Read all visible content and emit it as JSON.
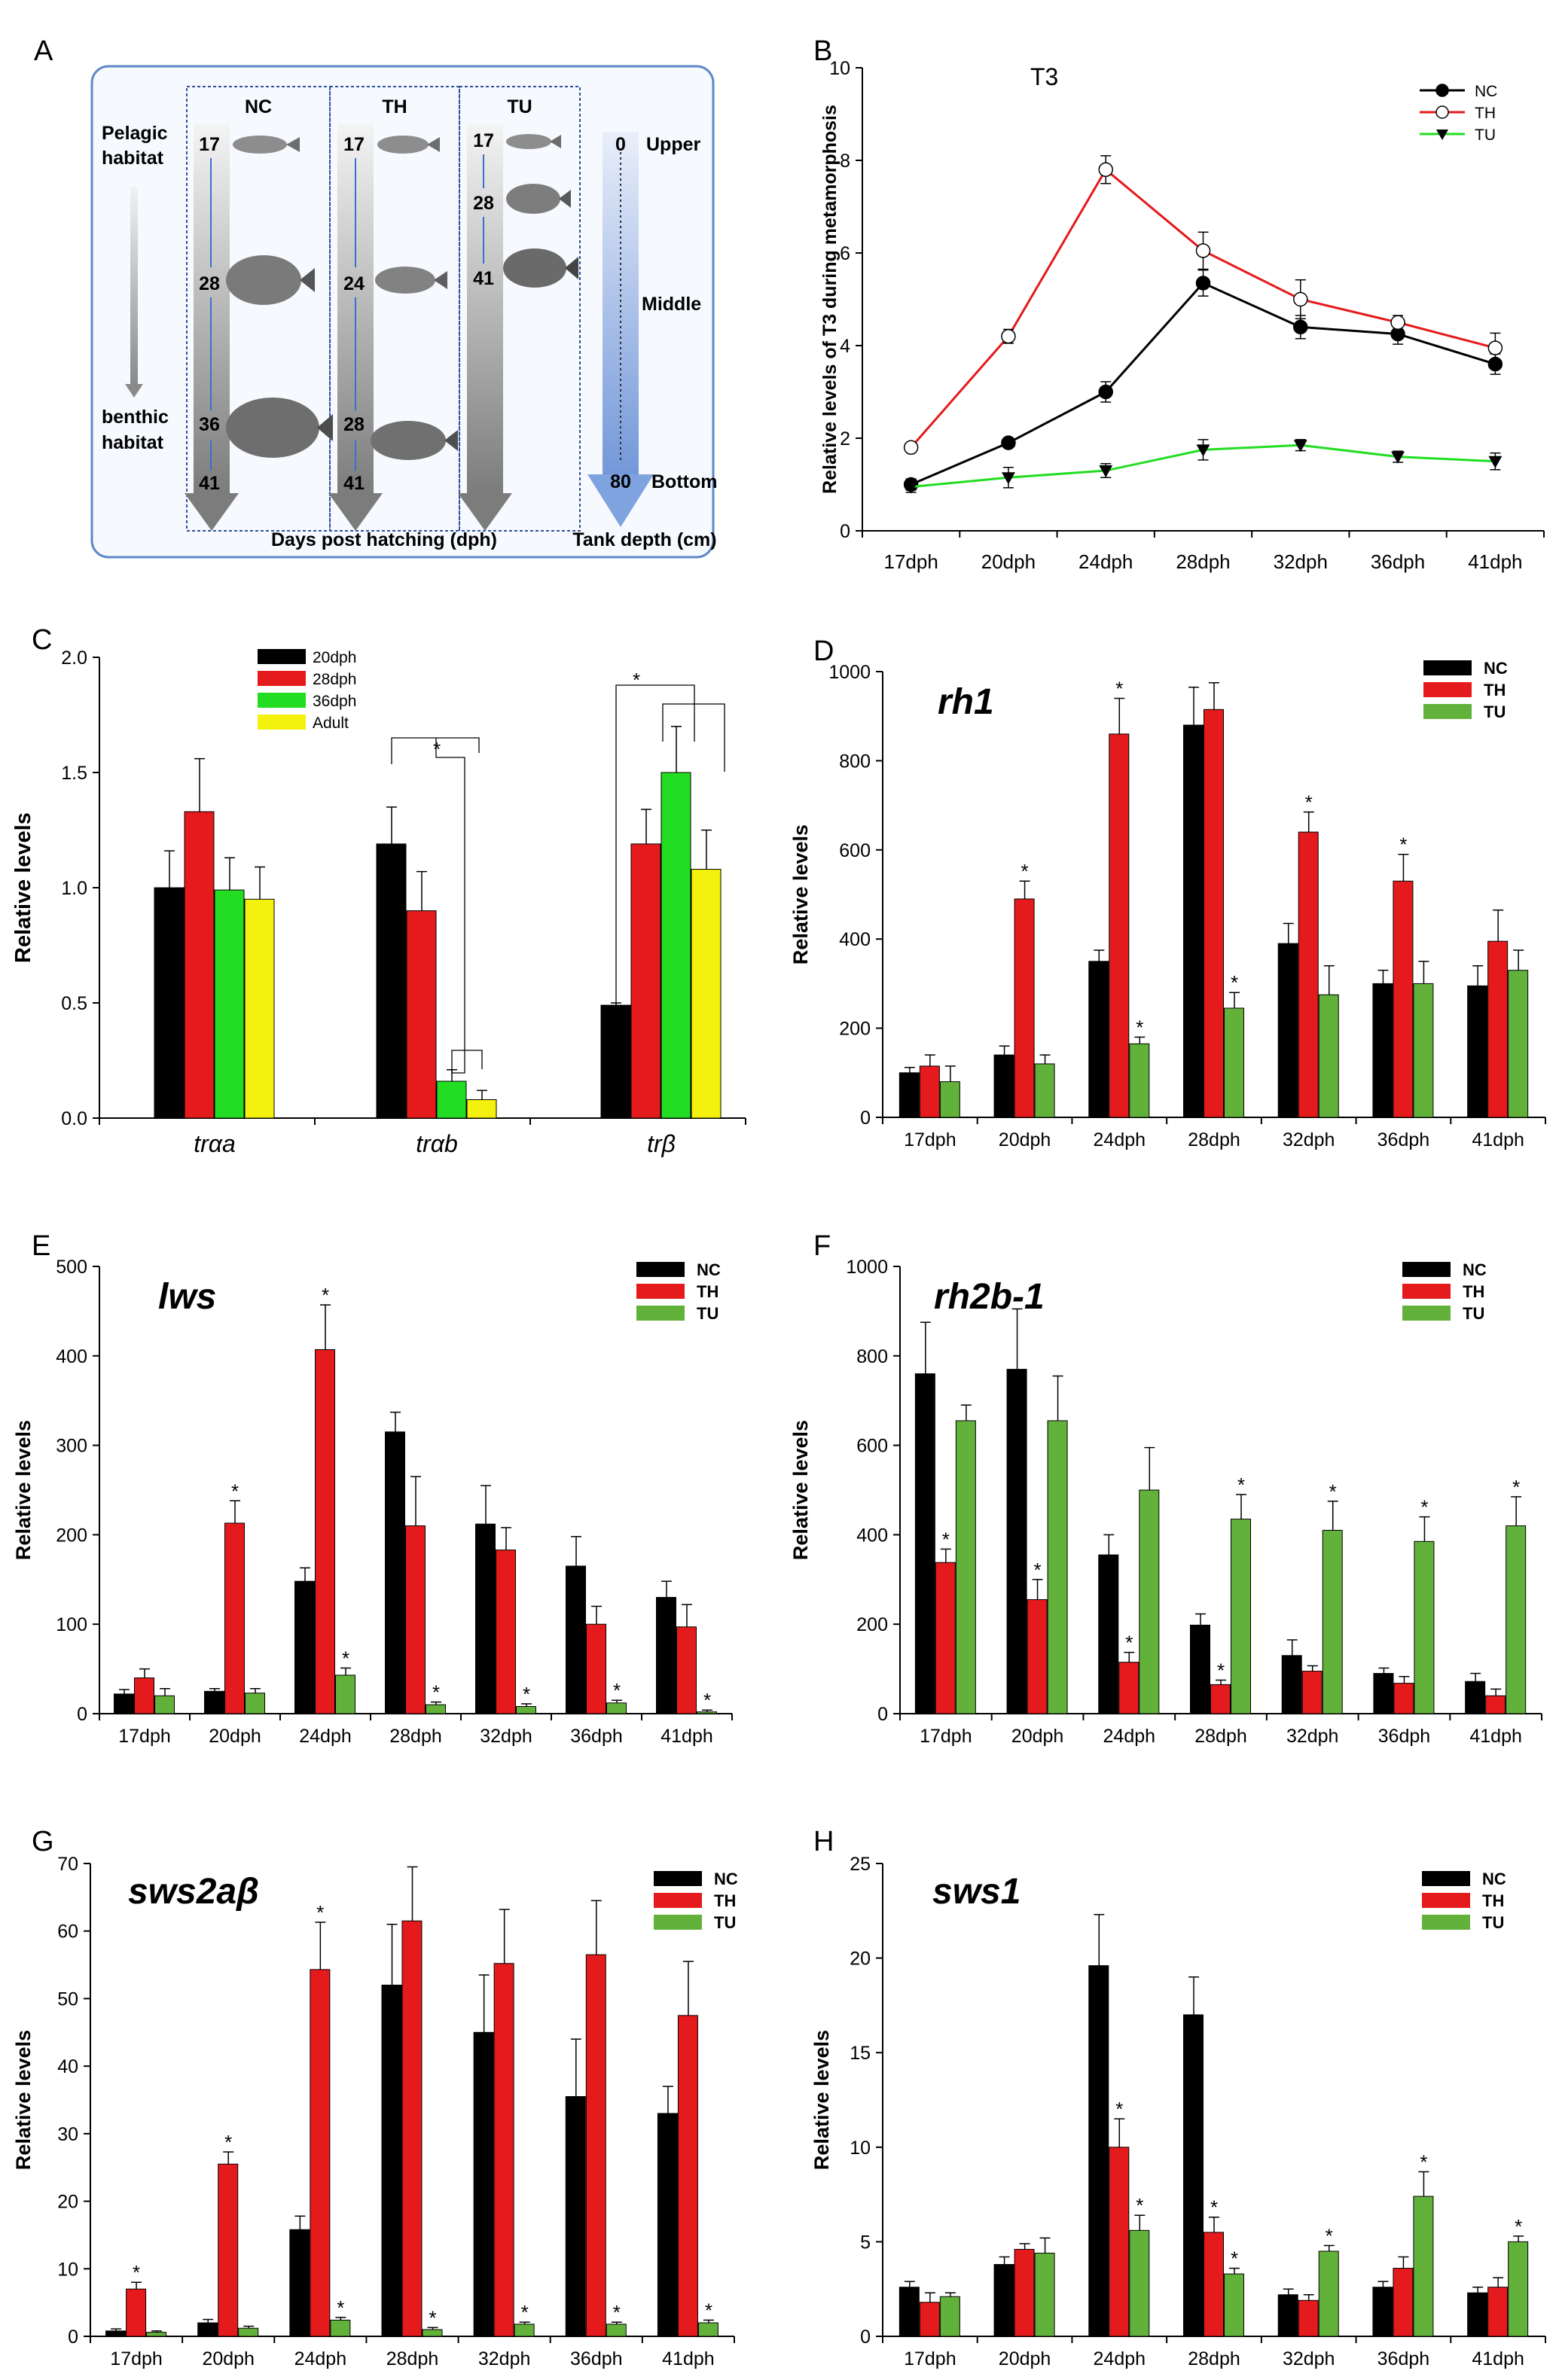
{
  "figure": {
    "panel_letters": [
      "A",
      "B",
      "C",
      "D",
      "E",
      "F",
      "G",
      "H"
    ],
    "colors": {
      "nc": "#000000",
      "th": "#e41a1c",
      "tu": "#62b13b",
      "tu_bright": "#22dd22",
      "adult": "#f4f10e",
      "panelA_bg": "#f6f9fd",
      "panelA_border": "#5f88c8",
      "depth_arrow": "#7fa3de"
    }
  },
  "panelA": {
    "groups": [
      "NC",
      "TH",
      "TU"
    ],
    "left_top_label": [
      "Pelagic",
      "habitat"
    ],
    "left_bottom_label": [
      "benthic",
      "habitat"
    ],
    "nc_days": [
      "17",
      "28",
      "36",
      "41"
    ],
    "th_days": [
      "17",
      "24",
      "28",
      "41"
    ],
    "tu_days": [
      "17",
      "28",
      "41"
    ],
    "depth_values": [
      "0",
      "80"
    ],
    "depth_labels": [
      "Upper",
      "Middle",
      "Bottom"
    ],
    "xlabel": "Days post hatching (dph)",
    "depth_axis_label": "Tank depth (cm)"
  },
  "chart_data": [
    {
      "panel": "B",
      "type": "line",
      "title": "T3",
      "categories": [
        "17dph",
        "20dph",
        "24dph",
        "28dph",
        "32dph",
        "36dph",
        "41dph"
      ],
      "ylabel": "Relative levels of T3 during metamorphosis",
      "ylim": [
        0,
        10
      ],
      "yticks": [
        "0",
        "2",
        "4",
        "6",
        "8",
        "10"
      ],
      "legend_position": "top-right",
      "series": [
        {
          "name": "NC",
          "values": [
            1.0,
            1.9,
            3.0,
            5.35,
            4.4,
            4.25,
            3.6
          ],
          "errors": [
            0.12,
            0.1,
            0.22,
            0.28,
            0.25,
            0.22,
            0.22
          ]
        },
        {
          "name": "TH",
          "values": [
            1.8,
            4.2,
            7.8,
            6.05,
            5.0,
            4.5,
            3.95
          ],
          "errors": [
            0.08,
            0.15,
            0.3,
            0.4,
            0.42,
            0.15,
            0.32
          ]
        },
        {
          "name": "TU",
          "values": [
            0.95,
            1.15,
            1.3,
            1.75,
            1.85,
            1.6,
            1.5
          ],
          "errors": [
            0.12,
            0.22,
            0.15,
            0.22,
            0.12,
            0.12,
            0.18
          ]
        }
      ]
    },
    {
      "panel": "C",
      "type": "bar",
      "xlabel": "",
      "ylabel": "Relative levels",
      "categories": [
        "trαa",
        "trαb",
        "trβ"
      ],
      "ylim": [
        0,
        2.0
      ],
      "yticks": [
        "0.0",
        "0.5",
        "1.0",
        "1.5",
        "2.0"
      ],
      "legend_position": "top-left",
      "series": [
        {
          "name": "20dph",
          "values": [
            1.0,
            1.19,
            0.49
          ],
          "errors": [
            0.16,
            0.16,
            0.01
          ]
        },
        {
          "name": "28dph",
          "values": [
            1.33,
            0.9,
            1.19
          ],
          "errors": [
            0.23,
            0.17,
            0.15
          ]
        },
        {
          "name": "36dph",
          "values": [
            0.99,
            0.16,
            1.5
          ],
          "errors": [
            0.14,
            0.05,
            0.2
          ]
        },
        {
          "name": "Adult",
          "values": [
            0.95,
            0.08,
            1.08
          ],
          "errors": [
            0.14,
            0.04,
            0.17
          ]
        }
      ],
      "annotations": [
        "*",
        "*"
      ]
    },
    {
      "panel": "D",
      "type": "bar",
      "title": "rh1",
      "ylabel": "Relative levels",
      "categories": [
        "17dph",
        "20dph",
        "24dph",
        "28dph",
        "32dph",
        "36dph",
        "41dph"
      ],
      "ylim": [
        0,
        1000
      ],
      "yticks": [
        "0",
        "200",
        "400",
        "600",
        "800",
        "1000"
      ],
      "legend_position": "top-right",
      "series": [
        {
          "name": "NC",
          "values": [
            100,
            140,
            350,
            880,
            390,
            300,
            295
          ],
          "errors": [
            12,
            20,
            25,
            85,
            45,
            30,
            45
          ]
        },
        {
          "name": "TH",
          "values": [
            115,
            490,
            860,
            915,
            640,
            530,
            395
          ],
          "errors": [
            25,
            40,
            80,
            60,
            45,
            60,
            70
          ]
        },
        {
          "name": "TU",
          "values": [
            80,
            120,
            165,
            245,
            275,
            300,
            330
          ],
          "errors": [
            35,
            20,
            15,
            35,
            65,
            50,
            45
          ]
        }
      ],
      "stars": [
        [
          false,
          false,
          false,
          false,
          false,
          false,
          false
        ],
        [
          false,
          true,
          true,
          false,
          true,
          true,
          false
        ],
        [
          false,
          false,
          true,
          true,
          false,
          false,
          false
        ]
      ]
    },
    {
      "panel": "E",
      "type": "bar",
      "title": "lws",
      "ylabel": "Relative levels",
      "categories": [
        "17dph",
        "20dph",
        "24dph",
        "28dph",
        "32dph",
        "36dph",
        "41dph"
      ],
      "ylim": [
        0,
        500
      ],
      "yticks": [
        "0",
        "100",
        "200",
        "300",
        "400",
        "500"
      ],
      "legend_position": "top-right",
      "series": [
        {
          "name": "NC",
          "values": [
            22,
            25,
            148,
            315,
            212,
            165,
            130
          ],
          "errors": [
            5,
            3,
            15,
            22,
            43,
            33,
            18
          ]
        },
        {
          "name": "TH",
          "values": [
            40,
            213,
            407,
            210,
            183,
            100,
            97
          ],
          "errors": [
            10,
            25,
            50,
            55,
            25,
            20,
            25
          ]
        },
        {
          "name": "TU",
          "values": [
            20,
            23,
            43,
            10,
            8,
            12,
            2
          ],
          "errors": [
            8,
            5,
            8,
            3,
            3,
            3,
            2
          ]
        }
      ],
      "stars": [
        [
          false,
          false,
          false,
          false,
          false,
          false,
          false
        ],
        [
          false,
          true,
          true,
          false,
          false,
          false,
          false
        ],
        [
          false,
          false,
          true,
          true,
          true,
          true,
          true
        ]
      ]
    },
    {
      "panel": "F",
      "type": "bar",
      "title": "rh2b-1",
      "ylabel": "Relative levels",
      "categories": [
        "17dph",
        "20dph",
        "24dph",
        "28dph",
        "32dph",
        "36dph",
        "41dph"
      ],
      "ylim": [
        0,
        1000
      ],
      "yticks": [
        "0",
        "200",
        "400",
        "600",
        "800",
        "1000"
      ],
      "legend_position": "top-right",
      "series": [
        {
          "name": "NC",
          "values": [
            760,
            770,
            355,
            198,
            130,
            90,
            72
          ],
          "errors": [
            115,
            135,
            45,
            25,
            35,
            12,
            18
          ]
        },
        {
          "name": "TH",
          "values": [
            338,
            255,
            115,
            65,
            95,
            68,
            40
          ],
          "errors": [
            30,
            45,
            22,
            10,
            12,
            15,
            15
          ]
        },
        {
          "name": "TU",
          "values": [
            655,
            655,
            500,
            435,
            410,
            385,
            420
          ],
          "errors": [
            35,
            100,
            95,
            55,
            65,
            55,
            65
          ]
        }
      ],
      "stars": [
        [
          false,
          false,
          false,
          false,
          false,
          false,
          false
        ],
        [
          true,
          true,
          true,
          true,
          false,
          false,
          false
        ],
        [
          false,
          false,
          false,
          true,
          true,
          true,
          true
        ]
      ]
    },
    {
      "panel": "G",
      "type": "bar",
      "title": "sws2aβ",
      "ylabel": "Relative levels",
      "categories": [
        "17dph",
        "20dph",
        "24dph",
        "28dph",
        "32dph",
        "36dph",
        "41dph"
      ],
      "ylim": [
        0,
        70
      ],
      "yticks": [
        "0",
        "10",
        "20",
        "30",
        "40",
        "50",
        "60",
        "70"
      ],
      "legend_position": "top-right",
      "series": [
        {
          "name": "NC",
          "values": [
            0.8,
            2.0,
            15.8,
            52,
            45,
            35.5,
            33
          ],
          "errors": [
            0.3,
            0.5,
            2.0,
            9,
            8.5,
            8.5,
            4
          ]
        },
        {
          "name": "TH",
          "values": [
            7.0,
            25.5,
            54.3,
            61.5,
            55.2,
            56.5,
            47.5
          ],
          "errors": [
            1.0,
            1.8,
            7.0,
            8.0,
            8.0,
            8.0,
            8.0
          ]
        },
        {
          "name": "TU",
          "values": [
            0.6,
            1.2,
            2.4,
            1.0,
            1.8,
            1.8,
            2.0
          ],
          "errors": [
            0.2,
            0.3,
            0.4,
            0.3,
            0.3,
            0.3,
            0.4
          ]
        }
      ],
      "stars": [
        [
          false,
          false,
          false,
          false,
          false,
          false,
          false
        ],
        [
          true,
          true,
          true,
          false,
          false,
          false,
          false
        ],
        [
          false,
          false,
          true,
          true,
          true,
          true,
          true
        ]
      ]
    },
    {
      "panel": "H",
      "type": "bar",
      "title": "sws1",
      "ylabel": "Relative levels",
      "categories": [
        "17dph",
        "20dph",
        "24dph",
        "28dph",
        "32dph",
        "36dph",
        "41dph"
      ],
      "ylim": [
        0,
        25
      ],
      "yticks": [
        "0",
        "5",
        "10",
        "15",
        "20",
        "25"
      ],
      "legend_position": "top-right",
      "series": [
        {
          "name": "NC",
          "values": [
            2.6,
            3.8,
            19.6,
            17.0,
            2.2,
            2.6,
            2.3
          ],
          "errors": [
            0.3,
            0.4,
            2.7,
            2.0,
            0.3,
            0.3,
            0.3
          ]
        },
        {
          "name": "TH",
          "values": [
            1.8,
            4.6,
            10.0,
            5.5,
            1.9,
            3.6,
            2.6
          ],
          "errors": [
            0.5,
            0.3,
            1.5,
            0.8,
            0.3,
            0.6,
            0.5
          ]
        },
        {
          "name": "TU",
          "values": [
            2.1,
            4.4,
            5.6,
            3.3,
            4.5,
            7.4,
            5.0
          ],
          "errors": [
            0.2,
            0.8,
            0.8,
            0.3,
            0.3,
            1.3,
            0.3
          ]
        }
      ],
      "stars": [
        [
          false,
          false,
          false,
          false,
          false,
          false,
          false
        ],
        [
          false,
          false,
          true,
          true,
          false,
          false,
          false
        ],
        [
          false,
          false,
          true,
          true,
          true,
          true,
          true
        ]
      ]
    }
  ]
}
